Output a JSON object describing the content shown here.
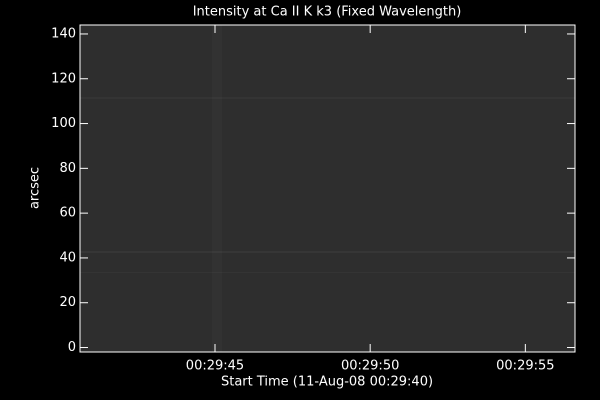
{
  "chart_data": {
    "type": "image",
    "title": "Intensity at Ca II K k3 (Fixed Wavelength)",
    "xlabel": "Start Time (11-Aug-08 00:29:40)",
    "ylabel": "arcsec",
    "xlim": [
      0.65,
      16.6
    ],
    "xticks": [
      {
        "value": 5,
        "label": "00:29:45"
      },
      {
        "value": 10,
        "label": "00:29:50"
      },
      {
        "value": 15,
        "label": "00:29:55"
      }
    ],
    "ylim": [
      -2,
      144
    ],
    "yticks": [
      0,
      20,
      40,
      60,
      80,
      100,
      120,
      140
    ],
    "color": "#2e2e2e"
  }
}
